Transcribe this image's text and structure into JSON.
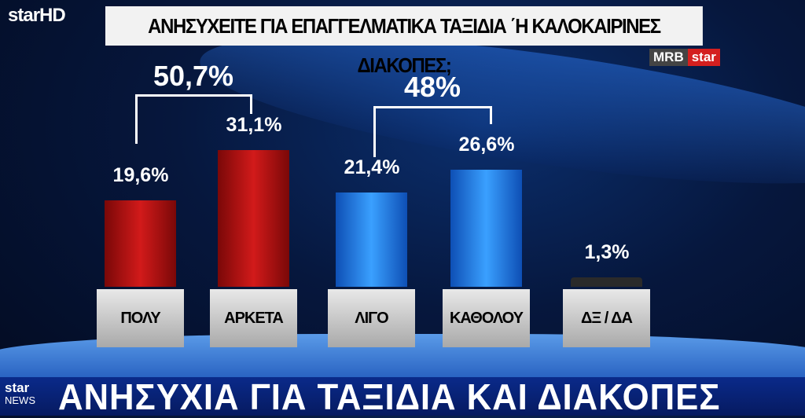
{
  "channel_logo": "starHD",
  "title": "ΑΝΗΣΥΧΕΙΤΕ ΓΙΑ ΕΠΑΓΓΕΛΜΑΤΙΚΑ ΤΑΞΙΔΙΑ ΄Η ΚΑΛΟΚΑΙΡΙΝΕΣ ΔΙΑΚΟΠΕΣ;",
  "source": {
    "pollster": "MRB",
    "network": "star"
  },
  "chart_data": {
    "type": "bar",
    "title": "ΑΝΗΣΥΧΕΙΤΕ ΓΙΑ ΕΠΑΓΓΕΛΜΑΤΙΚΑ ΤΑΞΙΔΙΑ ΄Η ΚΑΛΟΚΑΙΡΙΝΕΣ ΔΙΑΚΟΠΕΣ;",
    "categories": [
      "ΠΟΛΥ",
      "ΑΡΚΕΤΑ",
      "ΛΙΓΟ",
      "ΚΑΘΟΛΟΥ",
      "ΔΞ / ΔΑ"
    ],
    "values": [
      19.6,
      31.1,
      21.4,
      26.6,
      1.3
    ],
    "labels": [
      "19,6%",
      "31,1%",
      "21,4%",
      "26,6%",
      "1,3%"
    ],
    "colors": [
      "#c81414",
      "#c81414",
      "#2a8cf0",
      "#2a8cf0",
      "#2a2a2a"
    ],
    "groups": [
      {
        "label": "50,7%",
        "members": [
          "ΠΟΛΥ",
          "ΑΡΚΕΤΑ"
        ]
      },
      {
        "label": "48%",
        "members": [
          "ΛΙΓΟ",
          "ΚΑΘΟΛΟΥ"
        ]
      }
    ],
    "grid": false
  },
  "footer": {
    "logo_top": "star",
    "logo_bottom": "NEWS",
    "headline": "ΑΝΗΣΥΧΙΑ ΓΙΑ ΤΑΞΙΔΙΑ ΚΑΙ ΔΙΑΚΟΠΕΣ"
  }
}
